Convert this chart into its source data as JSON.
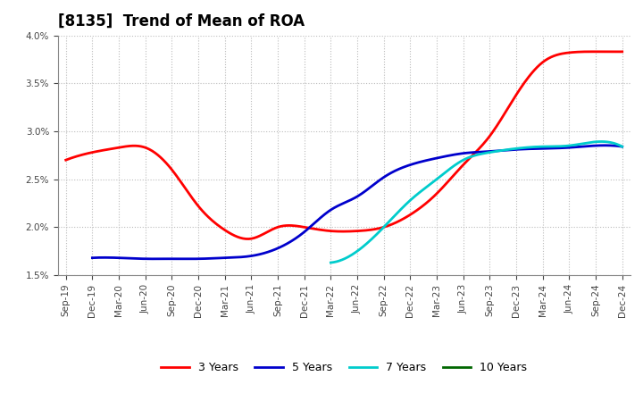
{
  "title": "[8135]  Trend of Mean of ROA",
  "ylim": [
    0.015,
    0.04
  ],
  "background_color": "#ffffff",
  "grid_color": "#bbbbbb",
  "series": {
    "3years": {
      "color": "#ff0000",
      "label": "3 Years",
      "x": [
        0,
        1,
        2,
        3,
        4,
        5,
        6,
        7,
        8,
        9,
        10,
        11,
        12,
        13,
        14,
        15,
        16,
        17,
        18,
        19,
        20,
        21
      ],
      "y": [
        0.027,
        0.0278,
        0.0283,
        0.0283,
        0.026,
        0.0222,
        0.0197,
        0.0188,
        0.02,
        0.02,
        0.0196,
        0.0196,
        0.02,
        0.0213,
        0.0235,
        0.0265,
        0.0295,
        0.0338,
        0.0372,
        0.0382,
        0.0383,
        0.0383
      ]
    },
    "5years": {
      "color": "#0000cc",
      "label": "5 Years",
      "x": [
        1,
        2,
        3,
        4,
        5,
        6,
        7,
        8,
        9,
        10,
        11,
        12,
        13,
        14,
        15,
        16,
        17,
        18,
        19,
        20,
        21
      ],
      "y": [
        0.0168,
        0.0168,
        0.0167,
        0.0167,
        0.0167,
        0.0168,
        0.017,
        0.0178,
        0.0195,
        0.0218,
        0.0232,
        0.0252,
        0.0265,
        0.0272,
        0.0277,
        0.0279,
        0.0281,
        0.0282,
        0.0283,
        0.0285,
        0.0284
      ]
    },
    "7years": {
      "color": "#00cccc",
      "label": "7 Years",
      "x": [
        10,
        11,
        12,
        13,
        14,
        15,
        16,
        17,
        18,
        19,
        20,
        21
      ],
      "y": [
        0.0163,
        0.0175,
        0.02,
        0.0228,
        0.025,
        0.027,
        0.0278,
        0.0282,
        0.0284,
        0.0285,
        0.0289,
        0.0284
      ]
    },
    "10years": {
      "color": "#006600",
      "label": "10 Years",
      "x": [],
      "y": []
    }
  },
  "xtick_labels": [
    "Sep-19",
    "Dec-19",
    "Mar-20",
    "Jun-20",
    "Sep-20",
    "Dec-20",
    "Mar-21",
    "Jun-21",
    "Sep-21",
    "Dec-21",
    "Mar-22",
    "Jun-22",
    "Sep-22",
    "Dec-22",
    "Mar-23",
    "Jun-23",
    "Sep-23",
    "Dec-23",
    "Mar-24",
    "Jun-24",
    "Sep-24",
    "Dec-24"
  ],
  "title_fontsize": 12,
  "tick_fontsize": 7.5,
  "legend_fontsize": 9
}
